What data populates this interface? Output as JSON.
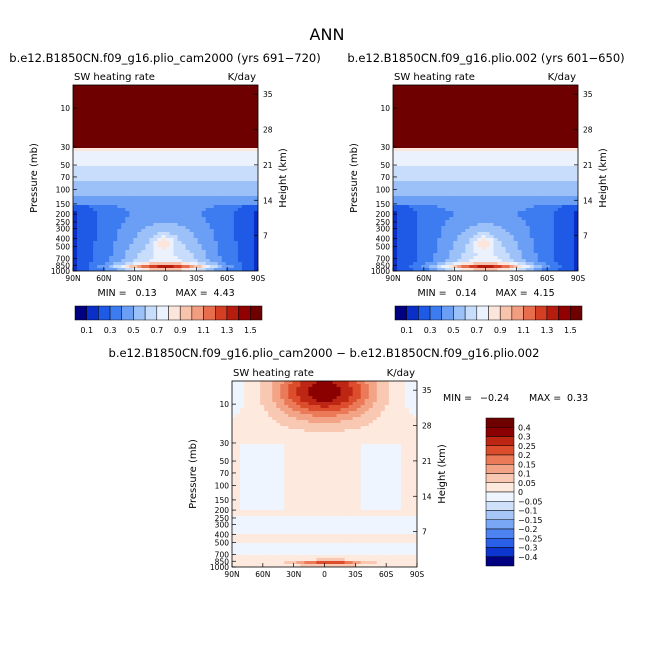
{
  "page_title": "ANN",
  "chart_data": [
    {
      "type": "heatmap",
      "title": "b.e12.B1850CN.f09_g16.plio_cam2000 (yrs 691−720)",
      "variable": "SW heating rate",
      "units": "K/day",
      "ylabel": "Pressure (mb)",
      "ylabel_right": "Height (km)",
      "x_ticks": [
        "90N",
        "60N",
        "30N",
        "0",
        "30S",
        "60S",
        "90S"
      ],
      "y_ticks": [
        "10",
        "30",
        "50",
        "70",
        "100",
        "150",
        "200",
        "250",
        "300",
        "400",
        "500",
        "700",
        "850",
        "1000"
      ],
      "height_ticks": [
        "35",
        "28",
        "21",
        "14",
        "7"
      ],
      "min_label": "MIN =",
      "min_value": "0.13",
      "max_label": "MAX =",
      "max_value": "4.43",
      "colorbar_labels": [
        "0.1",
        "0.3",
        "0.5",
        "0.7",
        "0.9",
        "1.1",
        "1.3",
        "1.5"
      ],
      "levels": [
        0.1,
        0.2,
        0.3,
        0.4,
        0.5,
        0.6,
        0.7,
        0.8,
        0.9,
        1.0,
        1.1,
        1.2,
        1.3,
        1.4,
        1.5
      ]
    },
    {
      "type": "heatmap",
      "title": "b.e12.B1850CN.f09_g16.plio.002 (yrs 601−650)",
      "variable": "SW heating rate",
      "units": "K/day",
      "ylabel": "Pressure (mb)",
      "ylabel_right": "Height (km)",
      "x_ticks": [
        "90N",
        "60N",
        "30N",
        "0",
        "30S",
        "60S",
        "90S"
      ],
      "y_ticks": [
        "10",
        "30",
        "50",
        "70",
        "100",
        "150",
        "200",
        "250",
        "300",
        "400",
        "500",
        "700",
        "850",
        "1000"
      ],
      "height_ticks": [
        "35",
        "28",
        "21",
        "14",
        "7"
      ],
      "min_label": "MIN =",
      "min_value": "0.14",
      "max_label": "MAX =",
      "max_value": "4.15",
      "colorbar_labels": [
        "0.1",
        "0.3",
        "0.5",
        "0.7",
        "0.9",
        "1.1",
        "1.3",
        "1.5"
      ],
      "levels": [
        0.1,
        0.2,
        0.3,
        0.4,
        0.5,
        0.6,
        0.7,
        0.8,
        0.9,
        1.0,
        1.1,
        1.2,
        1.3,
        1.4,
        1.5
      ]
    },
    {
      "type": "heatmap",
      "title": "b.e12.B1850CN.f09_g16.plio_cam2000 − b.e12.B1850CN.f09_g16.plio.002",
      "variable": "SW heating rate",
      "units": "K/day",
      "ylabel": "Pressure (mb)",
      "ylabel_right": "Height (km)",
      "x_ticks": [
        "90N",
        "60N",
        "30N",
        "0",
        "30S",
        "60S",
        "90S"
      ],
      "y_ticks": [
        "10",
        "30",
        "50",
        "70",
        "100",
        "150",
        "200",
        "250",
        "300",
        "400",
        "500",
        "700",
        "850",
        "1000"
      ],
      "height_ticks": [
        "35",
        "28",
        "21",
        "14",
        "7"
      ],
      "min_label": "MIN =",
      "min_value": "−0.24",
      "max_label": "MAX =",
      "max_value": "0.33",
      "colorbar_labels": [
        "0.4",
        "0.3",
        "0.25",
        "0.2",
        "0.15",
        "0.1",
        "0.05",
        "0",
        "−0.05",
        "−0.1",
        "−0.15",
        "−0.2",
        "−0.25",
        "−0.3",
        "−0.4"
      ],
      "levels": [
        -0.4,
        -0.3,
        -0.25,
        -0.2,
        -0.15,
        -0.1,
        -0.05,
        0,
        0.05,
        0.1,
        0.15,
        0.2,
        0.25,
        0.3,
        0.4
      ]
    }
  ],
  "colors": {
    "abs_scale": [
      "#000080",
      "#0a2fc8",
      "#1f5ae6",
      "#3c7cf0",
      "#6a9ff5",
      "#9cc1f8",
      "#c8dcfb",
      "#ebf2fe",
      "#fce6dc",
      "#f8c3ad",
      "#f29c80",
      "#e86d4f",
      "#d43f24",
      "#b61d0e",
      "#900000",
      "#6e0000"
    ],
    "diff_scale": [
      "#000080",
      "#0d36d0",
      "#2a5fe8",
      "#4c83f0",
      "#79a7f5",
      "#a6c6f8",
      "#cfe0fb",
      "#eef5fe",
      "#fde9de",
      "#f9c8b2",
      "#f3a486",
      "#ea7a58",
      "#db4d2c",
      "#bd2612",
      "#8b0000",
      "#6e0000"
    ]
  }
}
